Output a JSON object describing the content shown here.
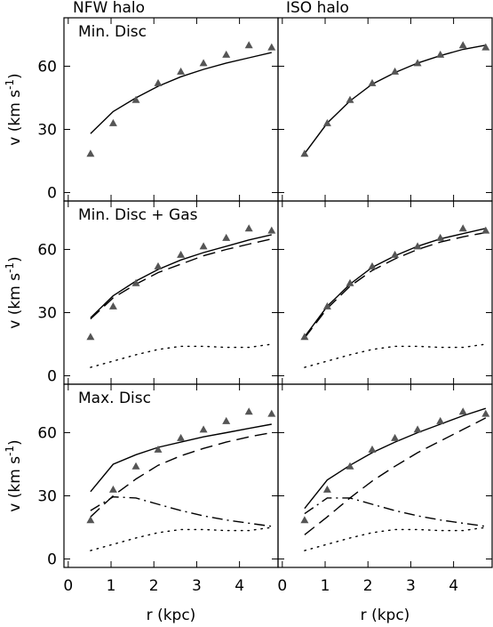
{
  "chart_data": {
    "type": "line",
    "column_titles": [
      "NFW halo",
      "ISO halo"
    ],
    "row_labels": [
      "Min. Disc",
      "Min. Disc + Gas",
      "Max. Disc"
    ],
    "xlabel": "r (kpc)",
    "ylabel": {
      "main": "v (km s",
      "sup": "-1",
      "close": ")"
    },
    "xlim": [
      -0.1,
      4.9
    ],
    "ylim": [
      -4,
      83
    ],
    "xticks": [
      0,
      1,
      2,
      3,
      4
    ],
    "yticks": [
      0,
      30,
      60
    ],
    "observed": {
      "x": [
        0.52,
        1.05,
        1.58,
        2.1,
        2.63,
        3.16,
        3.69,
        4.22,
        4.75
      ],
      "y": [
        18.5,
        33,
        44,
        52,
        57.5,
        61.5,
        65.5,
        70,
        69
      ]
    },
    "panels": [
      {
        "halo": "NFW halo",
        "model": "Min. Disc",
        "series": [
          {
            "style": "solid",
            "x": [
              0.52,
              1.05,
              1.58,
              2.1,
              2.63,
              3.16,
              3.69,
              4.22,
              4.75
            ],
            "y": [
              28,
              38.5,
              45,
              50.5,
              55,
              58.5,
              61.5,
              64,
              66.5
            ]
          }
        ]
      },
      {
        "halo": "ISO halo",
        "model": "Min. Disc",
        "series": [
          {
            "style": "solid",
            "x": [
              0.52,
              1.05,
              1.58,
              2.1,
              2.63,
              3.16,
              3.69,
              4.22,
              4.75
            ],
            "y": [
              18.5,
              33,
              43.5,
              51.5,
              57,
              61.5,
              65,
              68,
              70
            ]
          }
        ]
      },
      {
        "halo": "NFW halo",
        "model": "Min. Disc + Gas",
        "series": [
          {
            "style": "solid",
            "x": [
              0.52,
              1.05,
              1.58,
              2.1,
              2.63,
              3.16,
              3.69,
              4.22,
              4.75
            ],
            "y": [
              27.5,
              38,
              45,
              50.5,
              55,
              58.5,
              61.5,
              64.5,
              67
            ]
          },
          {
            "style": "dashed",
            "x": [
              0.52,
              1.05,
              1.58,
              2.1,
              2.63,
              3.16,
              3.69,
              4.22,
              4.75
            ],
            "y": [
              27,
              37,
              43.5,
              49,
              53,
              57,
              60,
              62.5,
              65
            ]
          },
          {
            "style": "dotted",
            "x": [
              0.52,
              1.05,
              1.58,
              2.1,
              2.63,
              3.16,
              3.69,
              4.22,
              4.75
            ],
            "y": [
              4,
              7,
              10,
              12.5,
              14,
              14,
              13.5,
              13.5,
              15
            ]
          }
        ]
      },
      {
        "halo": "ISO halo",
        "model": "Min. Disc + Gas",
        "series": [
          {
            "style": "solid",
            "x": [
              0.52,
              1.05,
              1.58,
              2.1,
              2.63,
              3.16,
              3.69,
              4.22,
              4.75
            ],
            "y": [
              18.5,
              33,
              43.5,
              51.5,
              57,
              61.5,
              65,
              67.5,
              70
            ]
          },
          {
            "style": "dashed",
            "x": [
              0.52,
              1.05,
              1.58,
              2.1,
              2.63,
              3.16,
              3.69,
              4.22,
              4.75
            ],
            "y": [
              18,
              32,
              42.5,
              50,
              55.5,
              60,
              63.5,
              66,
              68
            ]
          },
          {
            "style": "dotted",
            "x": [
              0.52,
              1.05,
              1.58,
              2.1,
              2.63,
              3.16,
              3.69,
              4.22,
              4.75
            ],
            "y": [
              4,
              7,
              10,
              12.5,
              14,
              14,
              13.5,
              13.5,
              15
            ]
          }
        ]
      },
      {
        "halo": "NFW halo",
        "model": "Max. Disc",
        "series": [
          {
            "style": "solid",
            "x": [
              0.52,
              1.05,
              1.58,
              2.1,
              2.63,
              3.16,
              3.69,
              4.22,
              4.75
            ],
            "y": [
              32,
              45,
              49.5,
              53,
              55.5,
              58,
              60,
              62,
              64
            ]
          },
          {
            "style": "dashed",
            "x": [
              0.52,
              1.05,
              1.58,
              2.1,
              2.63,
              3.16,
              3.69,
              4.22,
              4.75
            ],
            "y": [
              20,
              30,
              38,
              44.5,
              49,
              52.5,
              55.5,
              58,
              60
            ]
          },
          {
            "style": "dashdot",
            "x": [
              0.52,
              1.05,
              1.58,
              2.1,
              2.63,
              3.16,
              3.69,
              4.22,
              4.75
            ],
            "y": [
              23,
              29.5,
              29,
              26,
              23,
              20.5,
              18.5,
              17,
              15.5
            ]
          },
          {
            "style": "dotted",
            "x": [
              0.52,
              1.05,
              1.58,
              2.1,
              2.63,
              3.16,
              3.69,
              4.22,
              4.75
            ],
            "y": [
              4,
              7,
              10,
              12.5,
              14,
              14,
              13.5,
              13.5,
              15
            ]
          }
        ]
      },
      {
        "halo": "ISO halo",
        "model": "Max. Disc",
        "series": [
          {
            "style": "solid",
            "x": [
              0.52,
              1.05,
              1.58,
              2.1,
              2.63,
              3.16,
              3.69,
              4.22,
              4.75
            ],
            "y": [
              24,
              37.5,
              44.5,
              50.5,
              55.5,
              60,
              64,
              68,
              71.5
            ]
          },
          {
            "style": "dashed",
            "x": [
              0.52,
              1.05,
              1.58,
              2.1,
              2.63,
              3.16,
              3.69,
              4.22,
              4.75
            ],
            "y": [
              11.5,
              20,
              29,
              37,
              44,
              50.5,
              56,
              61.5,
              67
            ]
          },
          {
            "style": "dashdot",
            "x": [
              0.52,
              1.05,
              1.58,
              2.1,
              2.63,
              3.16,
              3.69,
              4.22,
              4.75
            ],
            "y": [
              21.5,
              29,
              29,
              26,
              23,
              20.5,
              18.5,
              17,
              15.5
            ]
          },
          {
            "style": "dotted",
            "x": [
              0.52,
              1.05,
              1.58,
              2.1,
              2.63,
              3.16,
              3.69,
              4.22,
              4.75
            ],
            "y": [
              4,
              7,
              10,
              12.5,
              14,
              14,
              13.5,
              13.5,
              15
            ]
          }
        ]
      }
    ]
  }
}
